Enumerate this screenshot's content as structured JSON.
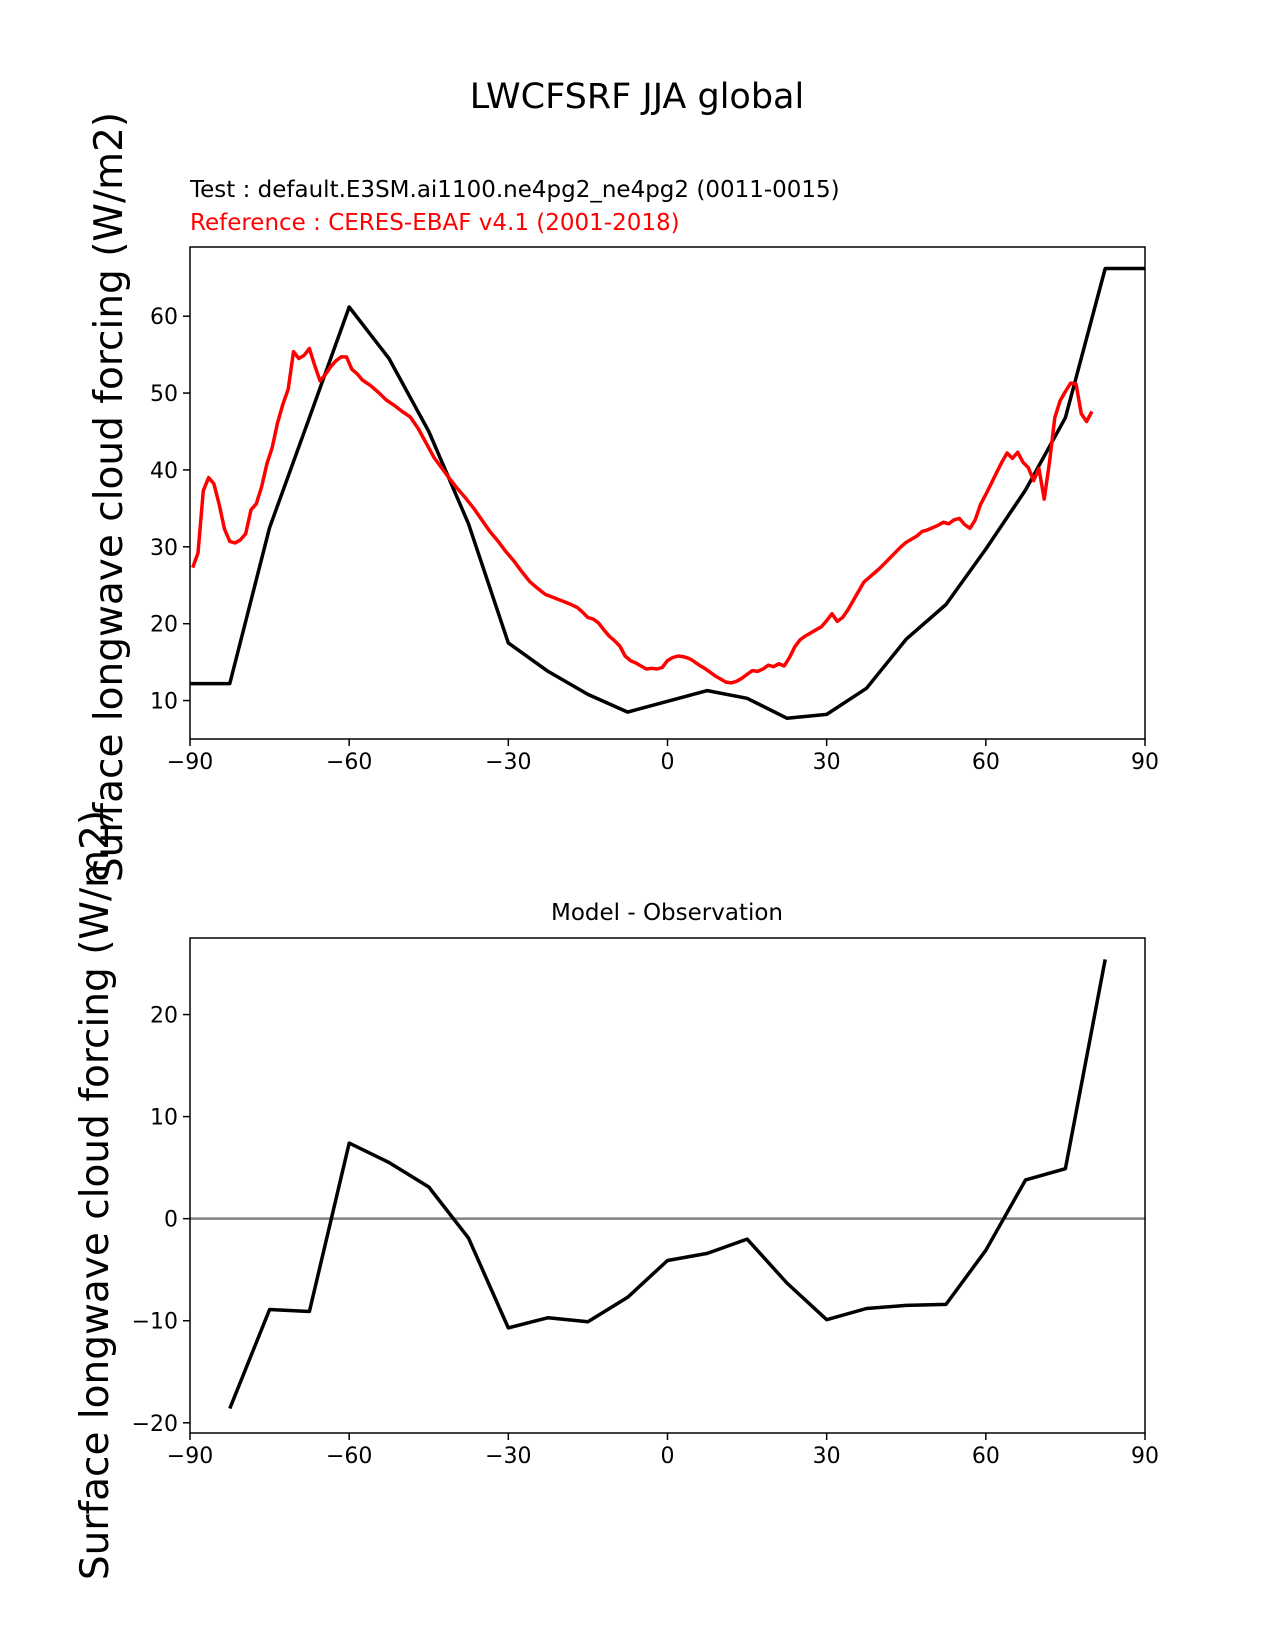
{
  "figure": {
    "title": "LWCFSRF JJA global"
  },
  "chart_data": [
    {
      "type": "line",
      "title": "",
      "test_label": "Test : default.E3SM.ai1100.ne4pg2_ne4pg2 (0011-0015)",
      "reference_label": "Reference : CERES-EBAF v4.1 (2001-2018)",
      "xlabel": "",
      "ylabel": "Surface longwave cloud forcing (W/m2)",
      "xlim": [
        -90,
        90
      ],
      "ylim": [
        5,
        69
      ],
      "xticks": [
        -90,
        -60,
        -30,
        0,
        30,
        60,
        90
      ],
      "yticks": [
        10,
        20,
        30,
        40,
        50,
        60
      ],
      "series": [
        {
          "role": "test",
          "color": "#000000",
          "points": [
            [
              -90,
              12.2
            ],
            [
              -82.5,
              12.2
            ],
            [
              -75,
              32.5
            ],
            [
              -67.5,
              46.8
            ],
            [
              -60,
              61.2
            ],
            [
              -52.5,
              54.5
            ],
            [
              -45,
              45
            ],
            [
              -37.5,
              33
            ],
            [
              -30,
              17.5
            ],
            [
              -22.5,
              13.8
            ],
            [
              -15,
              10.8
            ],
            [
              -7.5,
              8.5
            ],
            [
              0,
              9.9
            ],
            [
              7.5,
              11.3
            ],
            [
              15,
              10.3
            ],
            [
              22.5,
              7.7
            ],
            [
              30,
              8.2
            ],
            [
              37.5,
              11.6
            ],
            [
              45,
              18
            ],
            [
              52.5,
              22.5
            ],
            [
              60,
              29.7
            ],
            [
              67.5,
              37.4
            ],
            [
              75,
              46.8
            ],
            [
              82.5,
              66.2
            ],
            [
              90,
              66.2
            ]
          ]
        },
        {
          "role": "reference",
          "color": "#ff0000",
          "points": [
            [
              -89.5,
              27.3
            ],
            [
              -88.5,
              29.2
            ],
            [
              -87.5,
              37.3
            ],
            [
              -86.5,
              39
            ],
            [
              -85.5,
              38.2
            ],
            [
              -84.5,
              35.5
            ],
            [
              -83.5,
              32.3
            ],
            [
              -82.5,
              30.7
            ],
            [
              -81.5,
              30.5
            ],
            [
              -80.5,
              30.9
            ],
            [
              -79.5,
              31.7
            ],
            [
              -78.5,
              34.8
            ],
            [
              -77.5,
              35.6
            ],
            [
              -76.5,
              37.8
            ],
            [
              -75.5,
              40.8
            ],
            [
              -74.5,
              42.9
            ],
            [
              -73.5,
              46.1
            ],
            [
              -72.5,
              48.5
            ],
            [
              -71.5,
              50.5
            ],
            [
              -70.5,
              55.4
            ],
            [
              -69.5,
              54.5
            ],
            [
              -68.5,
              54.9
            ],
            [
              -67.5,
              55.8
            ],
            [
              -66.5,
              53.6
            ],
            [
              -65.5,
              51.6
            ],
            [
              -64.5,
              52.4
            ],
            [
              -63.5,
              53.4
            ],
            [
              -62.5,
              54.2
            ],
            [
              -61.5,
              54.7
            ],
            [
              -60.5,
              54.7
            ],
            [
              -59.5,
              53.1
            ],
            [
              -58.5,
              52.5
            ],
            [
              -57.5,
              51.7
            ],
            [
              -56,
              51
            ],
            [
              -54.5,
              50.1
            ],
            [
              -53,
              49.1
            ],
            [
              -51.5,
              48.4
            ],
            [
              -50,
              47.6
            ],
            [
              -48.5,
              46.9
            ],
            [
              -47,
              45.4
            ],
            [
              -45.5,
              43.5
            ],
            [
              -44,
              41.6
            ],
            [
              -42.5,
              40.2
            ],
            [
              -41,
              38.8
            ],
            [
              -39.5,
              37.5
            ],
            [
              -38,
              36.3
            ],
            [
              -36.5,
              35
            ],
            [
              -35,
              33.5
            ],
            [
              -33.5,
              32
            ],
            [
              -32,
              30.8
            ],
            [
              -30.5,
              29.4
            ],
            [
              -29,
              28.2
            ],
            [
              -27.5,
              26.8
            ],
            [
              -26,
              25.5
            ],
            [
              -24.5,
              24.6
            ],
            [
              -23,
              23.8
            ],
            [
              -21.5,
              23.4
            ],
            [
              -20,
              23
            ],
            [
              -18.5,
              22.6
            ],
            [
              -17,
              22.1
            ],
            [
              -16,
              21.5
            ],
            [
              -15,
              20.8
            ],
            [
              -14,
              20.6
            ],
            [
              -13,
              20.1
            ],
            [
              -12,
              19.2
            ],
            [
              -11,
              18.4
            ],
            [
              -10,
              17.8
            ],
            [
              -9,
              17.1
            ],
            [
              -8,
              15.8
            ],
            [
              -7,
              15.2
            ],
            [
              -6,
              14.9
            ],
            [
              -5,
              14.5
            ],
            [
              -4,
              14.1
            ],
            [
              -3,
              14.2
            ],
            [
              -2,
              14.1
            ],
            [
              -1,
              14.3
            ],
            [
              0,
              15.2
            ],
            [
              1,
              15.6
            ],
            [
              2,
              15.8
            ],
            [
              3,
              15.7
            ],
            [
              4,
              15.5
            ],
            [
              5,
              15.1
            ],
            [
              6,
              14.6
            ],
            [
              7,
              14.2
            ],
            [
              8,
              13.7
            ],
            [
              9,
              13.2
            ],
            [
              10,
              12.8
            ],
            [
              11,
              12.4
            ],
            [
              12,
              12.3
            ],
            [
              13,
              12.5
            ],
            [
              14,
              12.9
            ],
            [
              15,
              13.4
            ],
            [
              16,
              13.9
            ],
            [
              17,
              13.8
            ],
            [
              18,
              14.1
            ],
            [
              19,
              14.6
            ],
            [
              20,
              14.4
            ],
            [
              21,
              14.8
            ],
            [
              22,
              14.5
            ],
            [
              23,
              15.6
            ],
            [
              24,
              17
            ],
            [
              25,
              17.9
            ],
            [
              26,
              18.4
            ],
            [
              27,
              18.8
            ],
            [
              28,
              19.2
            ],
            [
              29,
              19.6
            ],
            [
              30,
              20.4
            ],
            [
              31,
              21.3
            ],
            [
              32,
              20.3
            ],
            [
              33,
              20.8
            ],
            [
              34,
              21.8
            ],
            [
              35,
              23
            ],
            [
              36,
              24.2
            ],
            [
              37,
              25.4
            ],
            [
              38,
              26
            ],
            [
              39,
              26.6
            ],
            [
              40,
              27.2
            ],
            [
              41,
              27.9
            ],
            [
              42,
              28.6
            ],
            [
              43,
              29.3
            ],
            [
              44,
              30
            ],
            [
              45,
              30.6
            ],
            [
              46,
              31
            ],
            [
              47,
              31.4
            ],
            [
              48,
              32
            ],
            [
              49,
              32.2
            ],
            [
              50,
              32.5
            ],
            [
              51,
              32.8
            ],
            [
              52,
              33.2
            ],
            [
              53,
              33
            ],
            [
              54,
              33.5
            ],
            [
              55,
              33.7
            ],
            [
              56,
              32.9
            ],
            [
              57,
              32.4
            ],
            [
              58,
              33.5
            ],
            [
              59,
              35.5
            ],
            [
              60,
              36.8
            ],
            [
              61,
              38.2
            ],
            [
              62,
              39.6
            ],
            [
              63,
              41
            ],
            [
              64,
              42.2
            ],
            [
              65,
              41.5
            ],
            [
              66,
              42.3
            ],
            [
              67,
              41
            ],
            [
              68,
              40.3
            ],
            [
              69,
              38.6
            ],
            [
              70,
              40.2
            ],
            [
              71,
              36.2
            ],
            [
              72,
              41
            ],
            [
              73,
              46.8
            ],
            [
              74,
              49
            ],
            [
              75,
              50.2
            ],
            [
              76,
              51.3
            ],
            [
              77,
              51.2
            ],
            [
              78,
              47.3
            ],
            [
              79,
              46.3
            ],
            [
              80,
              47.6
            ]
          ]
        }
      ]
    },
    {
      "type": "line",
      "title": "Model - Observation",
      "xlabel": "",
      "ylabel": "Surface longwave cloud forcing (W/m2)",
      "xlim": [
        -90,
        90
      ],
      "ylim": [
        -21,
        27.5
      ],
      "xticks": [
        -90,
        -60,
        -30,
        0,
        30,
        60,
        90
      ],
      "yticks": [
        -20,
        -10,
        0,
        10,
        20
      ],
      "zero_line": true,
      "series": [
        {
          "role": "difference",
          "color": "#000000",
          "points": [
            [
              -82.5,
              -18.6
            ],
            [
              -75,
              -8.9
            ],
            [
              -67.5,
              -9.1
            ],
            [
              -60,
              7.4
            ],
            [
              -52.5,
              5.5
            ],
            [
              -45,
              3.1
            ],
            [
              -37.5,
              -1.9
            ],
            [
              -30,
              -10.7
            ],
            [
              -22.5,
              -9.7
            ],
            [
              -15,
              -10.1
            ],
            [
              -7.5,
              -7.7
            ],
            [
              0,
              -4.1
            ],
            [
              7.5,
              -3.4
            ],
            [
              15,
              -2
            ],
            [
              22.5,
              -6.3
            ],
            [
              30,
              -9.9
            ],
            [
              37.5,
              -8.8
            ],
            [
              45,
              -8.5
            ],
            [
              52.5,
              -8.4
            ],
            [
              60,
              -3.1
            ],
            [
              67.5,
              3.8
            ],
            [
              75,
              4.9
            ],
            [
              82.5,
              25.4
            ]
          ]
        }
      ]
    }
  ]
}
